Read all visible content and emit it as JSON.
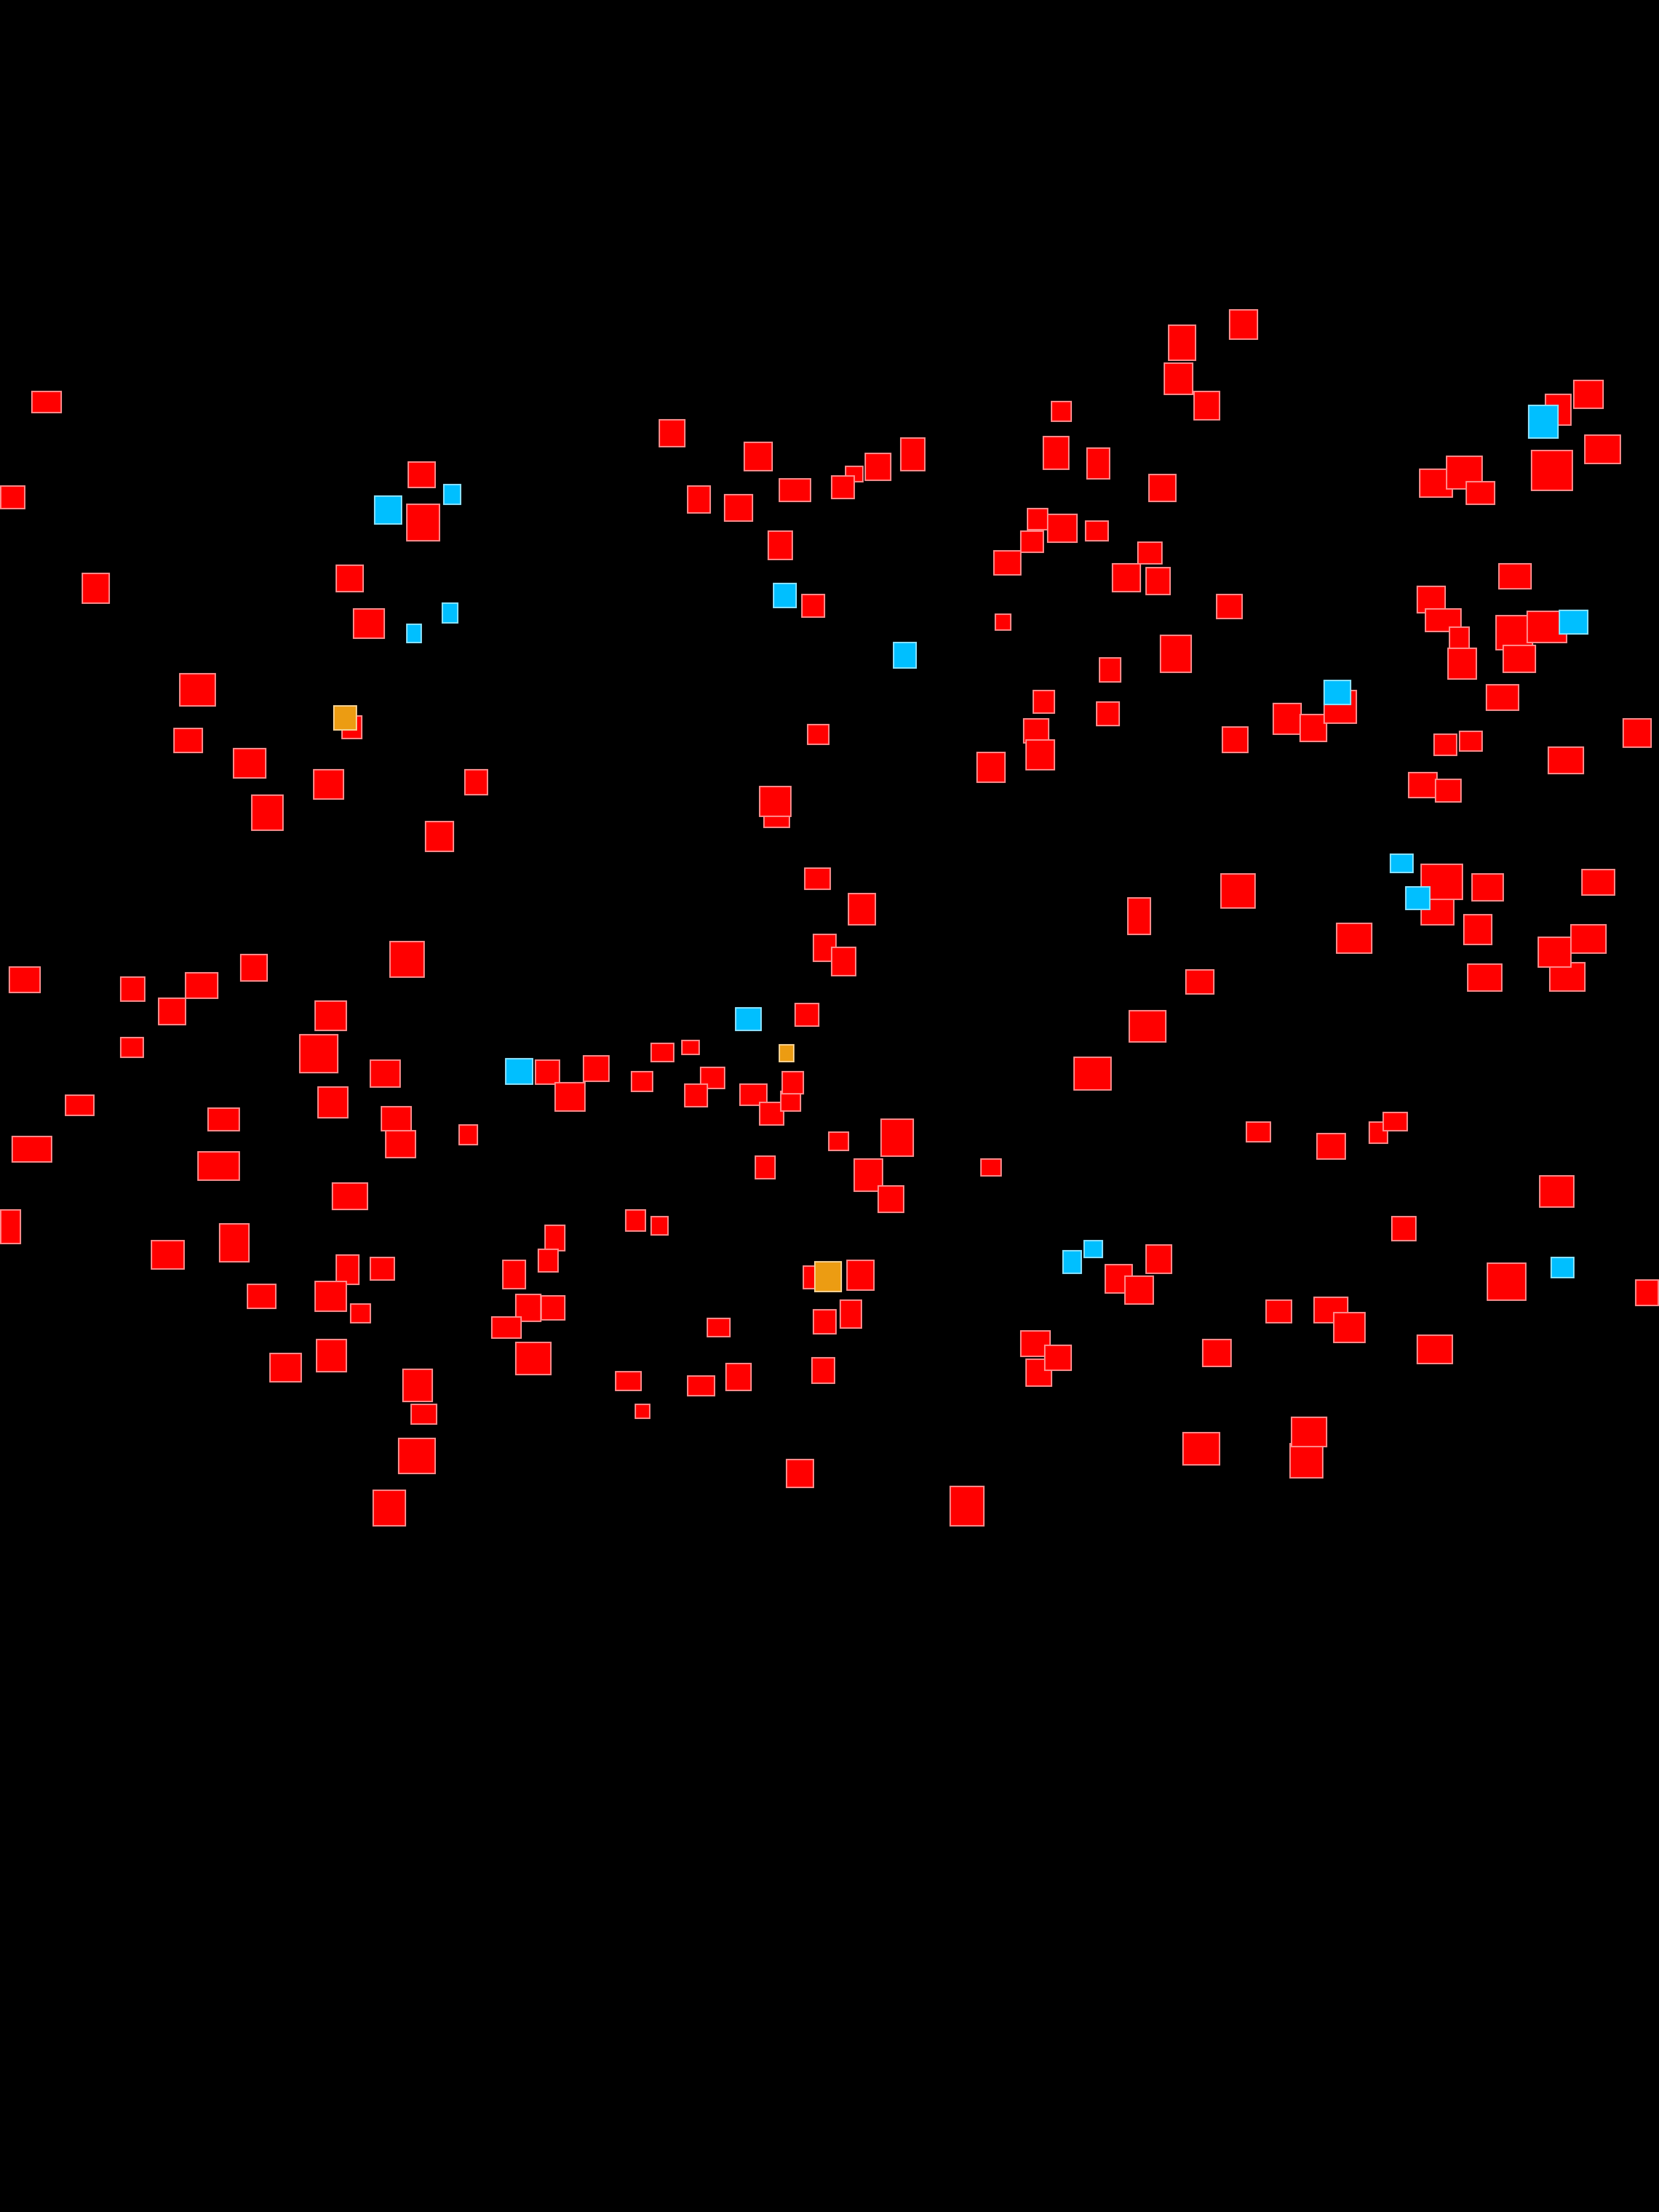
{
  "canvas": {
    "background": "#000000"
  },
  "colors": {
    "red": "#ff0000",
    "cyan": "#00bfff",
    "orange": "#ec9c12"
  }
}
